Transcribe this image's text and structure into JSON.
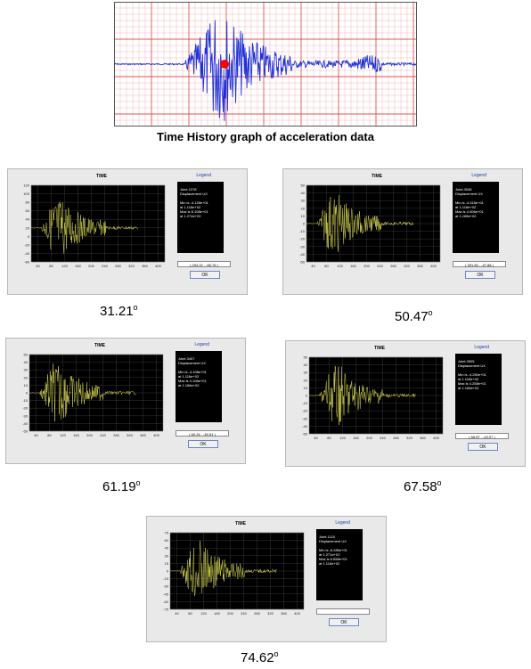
{
  "top": {
    "caption": "Time History graph of acceleration data"
  },
  "colors": {
    "grid": "#d44",
    "signal": "#1e2fd6",
    "marker": "#ff0000",
    "plot_bg": "#000000",
    "plot_trace": "#e8e85a",
    "legend_title": "#1f3fa8"
  },
  "panels": [
    {
      "plot_title": "TIME",
      "legend_title": "Legend",
      "legend_lines": [
        "Joint 1078",
        "Displacement UX",
        "",
        "Min is -4.128e+01",
        "at 1.116e+02",
        "Max is 8.108e+01",
        "at 1.274e+02"
      ],
      "coord": "( 294.22 , -65.76 )",
      "ok": "OK",
      "angle": "31.21",
      "y_ticks": [
        "120",
        "100",
        "80",
        "60",
        "40",
        "20",
        "0",
        "-20",
        "-40",
        "-60"
      ],
      "x_ticks": [
        "40",
        "80",
        "120",
        "160",
        "200",
        "240",
        "280",
        "320",
        "360",
        "400"
      ]
    },
    {
      "plot_title": "TIME",
      "legend_title": "Legend",
      "legend_lines": [
        "Joint 3046",
        "Displacement UX",
        "",
        "Min is -4.318e+01",
        "at 1.116e+02",
        "Max is 4.406e+01",
        "at 1.168e+02"
      ],
      "coord": "( 391.60 , -47.88 )",
      "ok": "OK",
      "angle": "50.47",
      "y_ticks": [
        "50",
        "40",
        "30",
        "20",
        "10",
        "0",
        "-10",
        "-20",
        "-30",
        "-40",
        "-50"
      ],
      "x_ticks": [
        "40",
        "80",
        "120",
        "160",
        "200",
        "240",
        "280",
        "320",
        "360",
        "400"
      ]
    },
    {
      "plot_title": "TIME",
      "legend_title": "Legend",
      "legend_lines": [
        "Joint 3407",
        "Displacement UX",
        "",
        "Min is -4.108e+01",
        "at 1.116e+02",
        "Max is 4.108e+01",
        "at 1.168e+02"
      ],
      "coord": "( 60.24 , -45.51 )",
      "ok": "OK",
      "angle": "61.19",
      "y_ticks": [
        "50",
        "40",
        "30",
        "20",
        "10",
        "0",
        "-10",
        "-20",
        "-30",
        "-40",
        "-50"
      ],
      "x_ticks": [
        "40",
        "80",
        "120",
        "160",
        "200",
        "240",
        "280",
        "320",
        "360",
        "400"
      ]
    },
    {
      "plot_title": "TIME",
      "legend_title": "Legend",
      "legend_lines": [
        "Joint 3505",
        "Displacement UX",
        "",
        "Min is -4.250e+01",
        "at 1.116e+02",
        "Max is 4.258e+01",
        "at 1.168e+02"
      ],
      "coord": "( 68.87 , -43.07 )",
      "ok": "OK",
      "angle": "67.58",
      "y_ticks": [
        "50",
        "40",
        "30",
        "20",
        "10",
        "0",
        "-10",
        "-20",
        "-30",
        "-40",
        "-50"
      ],
      "x_ticks": [
        "40",
        "80",
        "120",
        "160",
        "200",
        "240",
        "280",
        "320",
        "360",
        "400"
      ]
    },
    {
      "plot_title": "TIME",
      "legend_title": "Legend",
      "legend_lines": [
        "Joint 1115",
        "Displacement UX",
        "",
        "Min is -6.285e+01",
        "at 1.271e+02",
        "Max is 6.658e+01",
        "at 1.116e+02"
      ],
      "coord": "",
      "ok": "OK",
      "angle": "74.62",
      "y_ticks": [
        "75",
        "60",
        "45",
        "30",
        "15",
        "0",
        "-15",
        "-30",
        "-45",
        "-60",
        "-75"
      ],
      "x_ticks": [
        "40",
        "80",
        "120",
        "160",
        "200",
        "240",
        "280",
        "320",
        "360",
        "400"
      ]
    }
  ]
}
